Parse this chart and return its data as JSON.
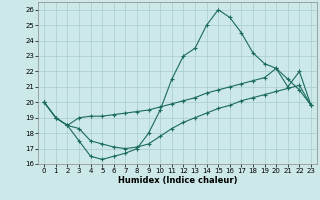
{
  "xlabel": "Humidex (Indice chaleur)",
  "background_color": "#cce8e8",
  "grid_color": "#aacccc",
  "line_color": "#1a6b5a",
  "xlim": [
    -0.5,
    23.5
  ],
  "ylim": [
    16,
    26.5
  ],
  "xticks": [
    0,
    1,
    2,
    3,
    4,
    5,
    6,
    7,
    8,
    9,
    10,
    11,
    12,
    13,
    14,
    15,
    16,
    17,
    18,
    19,
    20,
    21,
    22,
    23
  ],
  "yticks": [
    16,
    17,
    18,
    19,
    20,
    21,
    22,
    23,
    24,
    25,
    26
  ],
  "series": {
    "line1_x": [
      0,
      1,
      2,
      3,
      4,
      5,
      6,
      7,
      8,
      9,
      10,
      11,
      12,
      13,
      14,
      15,
      16,
      17,
      18,
      19,
      20,
      21,
      22,
      23
    ],
    "line1_y": [
      20,
      19,
      18.5,
      17.5,
      16.5,
      16.3,
      16.5,
      16.7,
      17.0,
      18.0,
      19.5,
      21.5,
      23.0,
      23.5,
      25.0,
      26.0,
      25.5,
      24.5,
      23.2,
      22.5,
      22.2,
      21.5,
      20.8,
      19.8
    ],
    "line2_x": [
      0,
      1,
      2,
      3,
      4,
      5,
      6,
      7,
      8,
      9,
      10,
      11,
      12,
      13,
      14,
      15,
      16,
      17,
      18,
      19,
      20,
      21,
      22,
      23
    ],
    "line2_y": [
      20,
      19,
      18.5,
      19.0,
      19.1,
      19.1,
      19.2,
      19.3,
      19.4,
      19.5,
      19.7,
      19.9,
      20.1,
      20.3,
      20.6,
      20.8,
      21.0,
      21.2,
      21.4,
      21.6,
      22.2,
      21.0,
      22.0,
      19.8
    ],
    "line3_x": [
      0,
      1,
      2,
      3,
      4,
      5,
      6,
      7,
      8,
      9,
      10,
      11,
      12,
      13,
      14,
      15,
      16,
      17,
      18,
      19,
      20,
      21,
      22,
      23
    ],
    "line3_y": [
      20,
      19,
      18.5,
      18.3,
      17.5,
      17.3,
      17.1,
      17.0,
      17.1,
      17.3,
      17.8,
      18.3,
      18.7,
      19.0,
      19.3,
      19.6,
      19.8,
      20.1,
      20.3,
      20.5,
      20.7,
      20.9,
      21.1,
      19.8
    ]
  }
}
